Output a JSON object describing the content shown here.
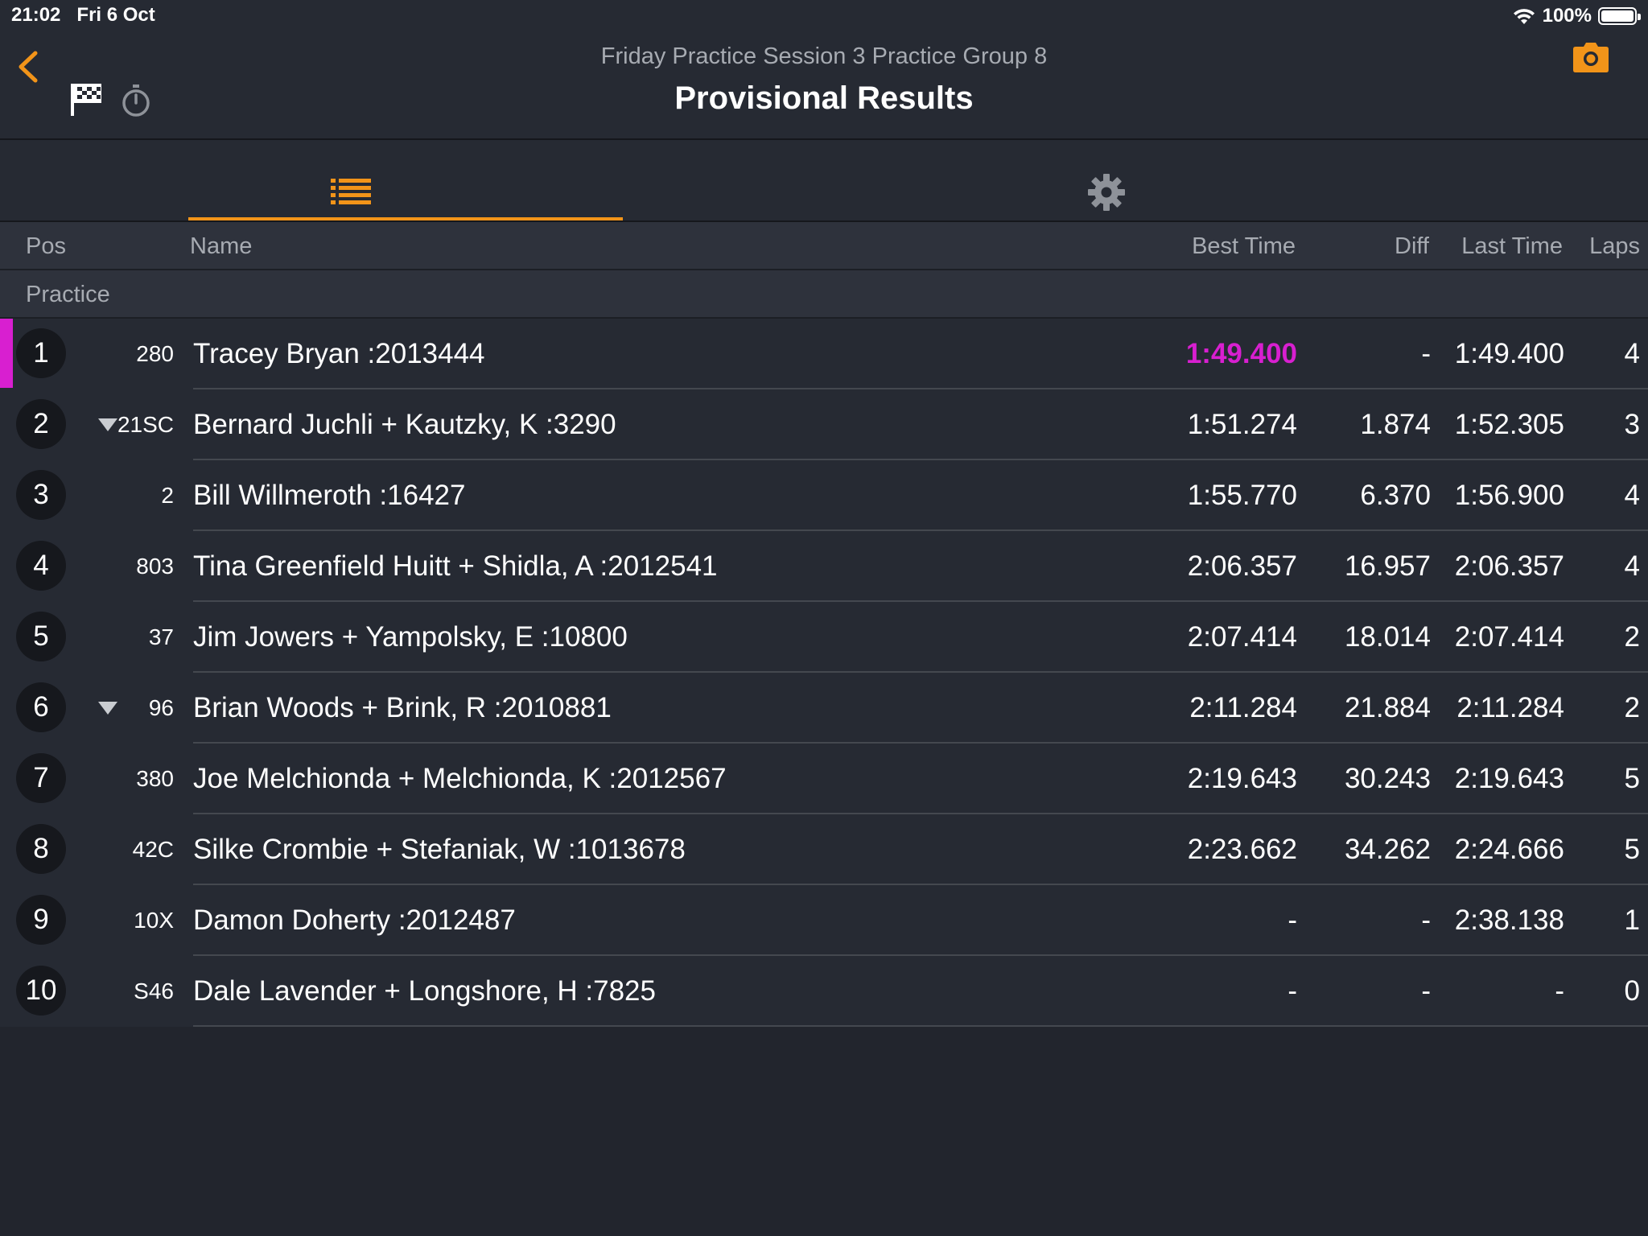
{
  "status_bar": {
    "time": "21:02",
    "date": "Fri 6 Oct",
    "battery": "100%"
  },
  "header": {
    "subtitle": "Friday Practice Session 3 Practice Group 8",
    "title": "Provisional Results"
  },
  "colors": {
    "accent": "#f29419",
    "fastest": "#d81fd0",
    "background": "#262a33"
  },
  "tabs": [
    {
      "icon": "list-icon",
      "selected": true
    },
    {
      "icon": "gear-icon",
      "selected": false
    }
  ],
  "columns": {
    "pos": "Pos",
    "name": "Name",
    "best": "Best Time",
    "diff": "Diff",
    "last": "Last Time",
    "laps": "Laps"
  },
  "section": "Practice",
  "rows": [
    {
      "pos": "1",
      "num": "280",
      "arrow": false,
      "name": "Tracey Bryan :2013444",
      "best": "1:49.400",
      "diff": "-",
      "last": "1:49.400",
      "laps": "4",
      "fastest": true
    },
    {
      "pos": "2",
      "num": "21SC",
      "arrow": true,
      "name": "Bernard Juchli + Kautzky, K :3290",
      "best": "1:51.274",
      "diff": "1.874",
      "last": "1:52.305",
      "laps": "3"
    },
    {
      "pos": "3",
      "num": "2",
      "arrow": false,
      "name": "Bill Willmeroth :16427",
      "best": "1:55.770",
      "diff": "6.370",
      "last": "1:56.900",
      "laps": "4"
    },
    {
      "pos": "4",
      "num": "803",
      "arrow": false,
      "name": "Tina Greenfield Huitt + Shidla, A :2012541",
      "best": "2:06.357",
      "diff": "16.957",
      "last": "2:06.357",
      "laps": "4"
    },
    {
      "pos": "5",
      "num": "37",
      "arrow": false,
      "name": "Jim Jowers + Yampolsky, E :10800",
      "best": "2:07.414",
      "diff": "18.014",
      "last": "2:07.414",
      "laps": "2"
    },
    {
      "pos": "6",
      "num": "96",
      "arrow": true,
      "name": "Brian Woods + Brink, R :2010881",
      "best": "2:11.284",
      "diff": "21.884",
      "last": "2:11.284",
      "laps": "2"
    },
    {
      "pos": "7",
      "num": "380",
      "arrow": false,
      "name": "Joe Melchionda + Melchionda, K :2012567",
      "best": "2:19.643",
      "diff": "30.243",
      "last": "2:19.643",
      "laps": "5"
    },
    {
      "pos": "8",
      "num": "42C",
      "arrow": false,
      "name": "Silke Crombie + Stefaniak, W :1013678",
      "best": "2:23.662",
      "diff": "34.262",
      "last": "2:24.666",
      "laps": "5"
    },
    {
      "pos": "9",
      "num": "10X",
      "arrow": false,
      "name": "Damon Doherty :2012487",
      "best": "-",
      "diff": "-",
      "last": "2:38.138",
      "laps": "1"
    },
    {
      "pos": "10",
      "num": "S46",
      "arrow": false,
      "name": "Dale Lavender + Longshore, H :7825",
      "best": "-",
      "diff": "-",
      "last": "-",
      "laps": "0"
    }
  ]
}
